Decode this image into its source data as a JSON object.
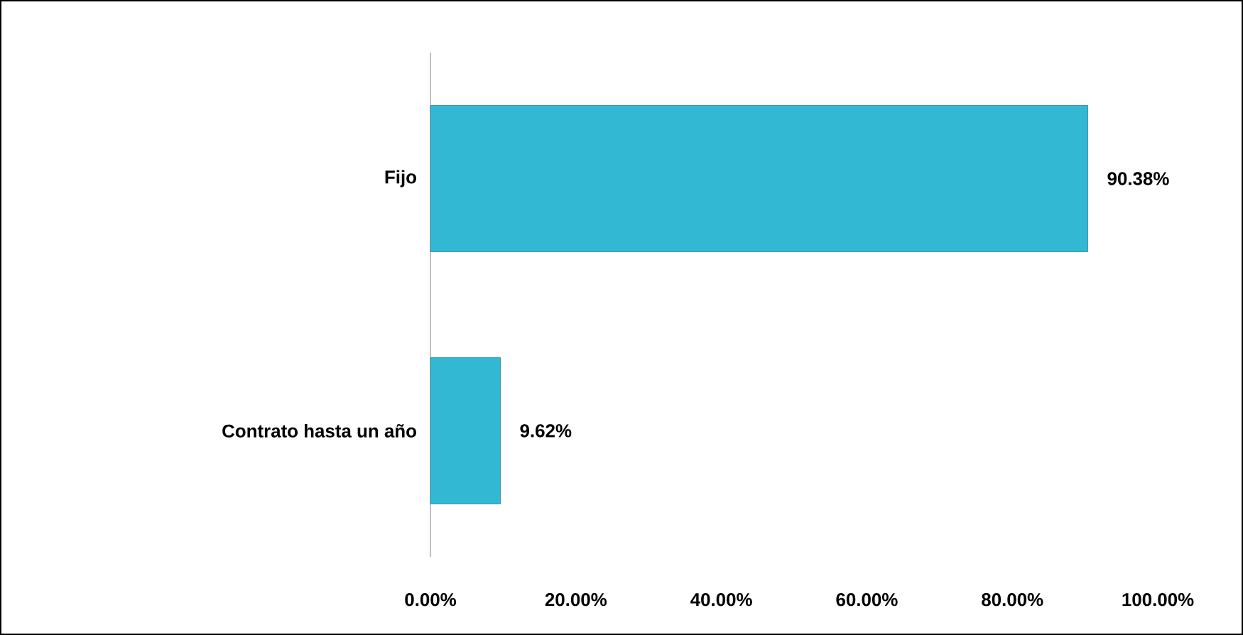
{
  "chart_data": {
    "type": "bar",
    "orientation": "horizontal",
    "categories": [
      "Fijo",
      "Contrato hasta un año"
    ],
    "values": [
      90.38,
      9.62
    ],
    "color": "#33b8d4",
    "value_labels": [
      "90.38%",
      "9.62%"
    ],
    "xlim": [
      0,
      100
    ],
    "xticks": [
      {
        "value": 0,
        "label": "0.00%"
      },
      {
        "value": 20,
        "label": "20.00%"
      },
      {
        "value": 40,
        "label": "40.00%"
      },
      {
        "value": 60,
        "label": "60.00%"
      },
      {
        "value": 80,
        "label": "80.00%"
      },
      {
        "value": 100,
        "label": "100.00%"
      }
    ]
  }
}
